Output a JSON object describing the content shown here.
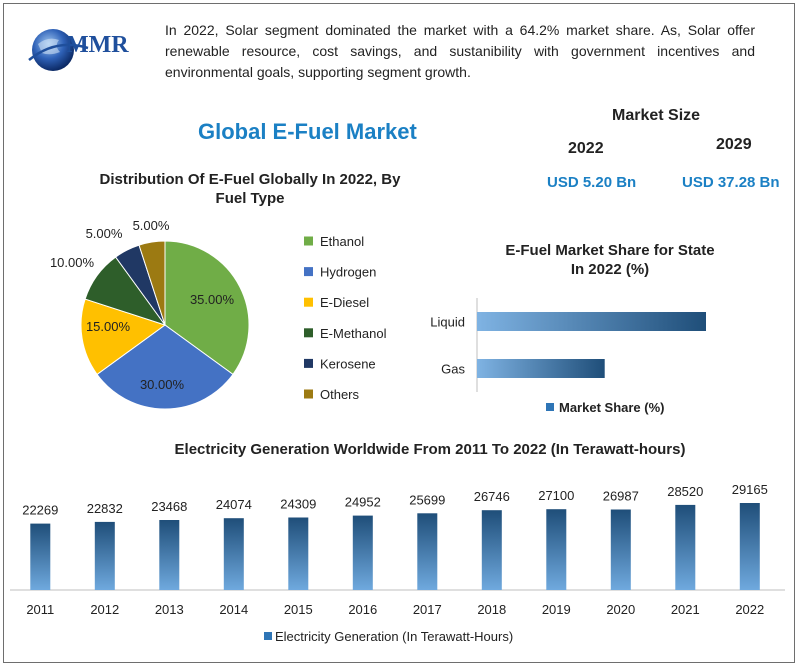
{
  "header": {
    "logo_text": "MMR",
    "intro": "In 2022, Solar segment dominated the  market with a 64.2% market share. As, Solar offer renewable resource, cost savings, and sustanibility with government incentives and environmental goals, supporting segment growth."
  },
  "title": "Global E-Fuel Market",
  "market_size": {
    "title": "Market Size",
    "year_a": "2022",
    "value_a": "USD 5.20 Bn",
    "year_b": "2029",
    "value_b": "USD 37.28 Bn"
  },
  "chart_data": [
    {
      "type": "pie",
      "title_line1": "Distribution Of E-Fuel Globally In 2022, By",
      "title_line2": "Fuel Type",
      "categories": [
        "Ethanol",
        "Hydrogen",
        "E-Diesel",
        "E-Methanol",
        "Kerosene",
        "Others"
      ],
      "values": [
        35,
        30,
        15,
        10,
        5,
        5
      ],
      "labels": [
        "35.00%",
        "30.00%",
        "15.00%",
        "10.00%",
        "5.00%",
        "5.00%"
      ],
      "colors": [
        "#70ad47",
        "#4472c4",
        "#ffc000",
        "#2e5e2a",
        "#203864",
        "#9c7a12"
      ],
      "legend": "right"
    },
    {
      "type": "bar",
      "orientation": "horizontal",
      "title_line1": "E-Fuel Market Share for State",
      "title_line2": "In 2022 (%)",
      "categories": [
        "Liquid",
        "Gas"
      ],
      "values": [
        64.2,
        35.8
      ],
      "xlim": [
        0,
        100
      ],
      "series_name": "Market Share (%)",
      "legend": "bottom",
      "color": "#2e75b6"
    },
    {
      "type": "bar",
      "title": "Electricity Generation Worldwide From 2011 To 2022 (In Terawatt-hours)",
      "categories": [
        "2011",
        "2012",
        "2013",
        "2014",
        "2015",
        "2016",
        "2017",
        "2018",
        "2019",
        "2020",
        "2021",
        "2022"
      ],
      "values": [
        22269,
        22832,
        23468,
        24074,
        24309,
        24952,
        25699,
        26746,
        27100,
        26987,
        28520,
        29165
      ],
      "ylim": [
        0,
        29165
      ],
      "series_name": "Electricity Generation (In Terawatt-Hours)",
      "legend": "bottom",
      "color": "#2e75b6"
    }
  ]
}
